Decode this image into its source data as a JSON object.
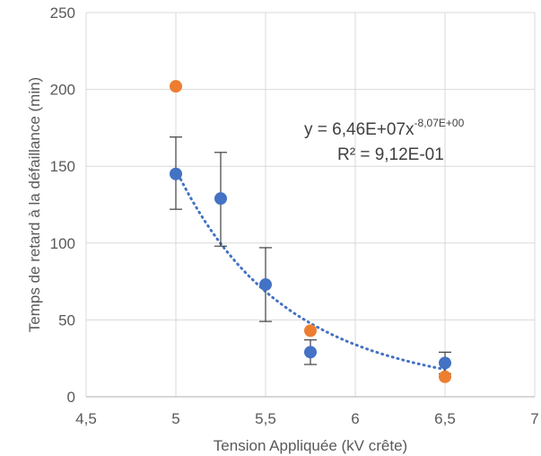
{
  "chart_data": {
    "type": "scatter",
    "xlabel": "Tension Appliquée (kV crête)",
    "ylabel": "Temps de retard à la défaillance (min)",
    "xlim": [
      4.5,
      7
    ],
    "ylim": [
      0,
      250
    ],
    "x_ticks": [
      "4,5",
      "5",
      "5,5",
      "6",
      "6,5",
      "7"
    ],
    "y_ticks": [
      "0",
      "50",
      "100",
      "150",
      "200",
      "250"
    ],
    "grid": "vertical and horizontal major gridlines",
    "legend": "none",
    "series": [
      {
        "color": "#4472C4",
        "points": [
          {
            "x": 5.0,
            "y": 145,
            "err_low": 122,
            "err_high": 169
          },
          {
            "x": 5.25,
            "y": 129,
            "err_low": 98,
            "err_high": 159
          },
          {
            "x": 5.5,
            "y": 73,
            "err_low": 49,
            "err_high": 97
          },
          {
            "x": 5.75,
            "y": 29,
            "err_low": 21,
            "err_high": 37
          },
          {
            "x": 6.5,
            "y": 22,
            "err_low": 15,
            "err_high": 29
          }
        ]
      },
      {
        "color": "#ED7D31",
        "points": [
          {
            "x": 5.0,
            "y": 202
          },
          {
            "x": 5.75,
            "y": 43
          },
          {
            "x": 6.5,
            "y": 13
          }
        ]
      }
    ],
    "trendline": {
      "type": "power",
      "coefficient": 64600000,
      "exponent": -8.07,
      "x_range": [
        5.0,
        6.5
      ],
      "color": "#4472C4",
      "style": "dotted",
      "equation_base": "y = 6,46E+07x",
      "equation_exponent": "-8,07E+00",
      "r_squared_label": "R² = 9,12E-01"
    }
  }
}
